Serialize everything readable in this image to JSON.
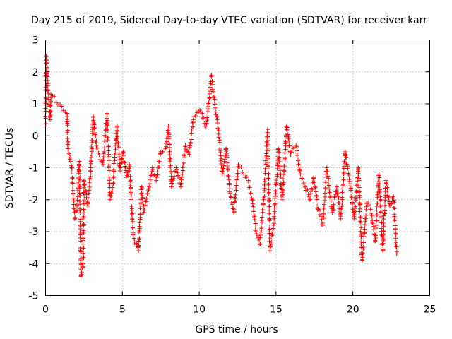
{
  "chart_data": {
    "type": "scatter",
    "title": "Day 215 of 2019, Sidereal Day-to-day VTEC variation (SDTVAR) for receiver karr",
    "xlabel": "GPS time / hours",
    "ylabel": "SDTVAR / TECUs",
    "xlim": [
      0,
      25
    ],
    "ylim": [
      -5,
      3
    ],
    "xticks": [
      "0",
      "5",
      "10",
      "15",
      "20",
      "25"
    ],
    "yticks": [
      "-5",
      "-4",
      "-3",
      "-2",
      "-1",
      "0",
      "1",
      "2",
      "3"
    ],
    "grid": true,
    "marker": "plus",
    "color": "#ff0000",
    "series": [
      {
        "name": "SDTVAR",
        "anchors": [
          [
            0.0,
            0.3
          ],
          [
            0.05,
            2.5
          ],
          [
            0.1,
            1.9
          ],
          [
            0.2,
            1.2
          ],
          [
            0.3,
            0.5
          ],
          [
            0.35,
            1.3
          ],
          [
            1.4,
            0.7
          ],
          [
            1.45,
            -0.4
          ],
          [
            1.7,
            -1.0
          ],
          [
            1.9,
            -2.6
          ],
          [
            2.05,
            -2.2
          ],
          [
            2.2,
            -0.8
          ],
          [
            2.3,
            -4.4
          ],
          [
            2.45,
            -4.1
          ],
          [
            2.5,
            -1.4
          ],
          [
            2.75,
            -2.2
          ],
          [
            2.95,
            -1.0
          ],
          [
            3.1,
            0.6
          ],
          [
            3.3,
            -0.3
          ],
          [
            3.5,
            -0.6
          ],
          [
            3.75,
            -0.9
          ],
          [
            4.0,
            0.7
          ],
          [
            4.2,
            -2.0
          ],
          [
            4.4,
            -1.5
          ],
          [
            4.5,
            -0.6
          ],
          [
            4.65,
            0.3
          ],
          [
            4.85,
            -1.1
          ],
          [
            5.05,
            -0.5
          ],
          [
            5.25,
            -1.3
          ],
          [
            5.45,
            -0.9
          ],
          [
            5.7,
            -3.1
          ],
          [
            6.05,
            -3.6
          ],
          [
            6.25,
            -1.6
          ],
          [
            6.4,
            -2.4
          ],
          [
            6.7,
            -1.7
          ],
          [
            6.95,
            -1.0
          ],
          [
            7.2,
            -1.4
          ],
          [
            7.5,
            -0.5
          ],
          [
            7.8,
            -0.4
          ],
          [
            8.0,
            0.3
          ],
          [
            8.2,
            -1.6
          ],
          [
            8.5,
            -1.0
          ],
          [
            8.8,
            -1.6
          ],
          [
            9.1,
            -0.3
          ],
          [
            9.35,
            -0.6
          ],
          [
            9.65,
            0.6
          ],
          [
            10.05,
            0.8
          ],
          [
            10.45,
            0.3
          ],
          [
            10.8,
            1.9
          ],
          [
            10.95,
            1.2
          ],
          [
            11.2,
            0.4
          ],
          [
            11.5,
            -1.2
          ],
          [
            11.75,
            -0.4
          ],
          [
            12.0,
            -1.8
          ],
          [
            12.25,
            -2.4
          ],
          [
            12.55,
            -0.9
          ],
          [
            12.9,
            -1.2
          ],
          [
            13.2,
            -1.4
          ],
          [
            13.45,
            -2.0
          ],
          [
            13.7,
            -3.0
          ],
          [
            13.95,
            -3.4
          ],
          [
            14.2,
            -2.0
          ],
          [
            14.45,
            0.2
          ],
          [
            14.6,
            -3.6
          ],
          [
            14.85,
            -2.8
          ],
          [
            15.15,
            -0.4
          ],
          [
            15.4,
            -2.0
          ],
          [
            15.7,
            0.3
          ],
          [
            15.95,
            -0.6
          ],
          [
            16.3,
            -0.3
          ],
          [
            16.55,
            -1.1
          ],
          [
            16.9,
            -1.6
          ],
          [
            17.2,
            -2.0
          ],
          [
            17.45,
            -1.3
          ],
          [
            17.75,
            -2.3
          ],
          [
            18.05,
            -2.8
          ],
          [
            18.3,
            -1.0
          ],
          [
            18.65,
            -2.4
          ],
          [
            18.95,
            -1.6
          ],
          [
            19.2,
            -2.6
          ],
          [
            19.5,
            -0.5
          ],
          [
            19.8,
            -1.5
          ],
          [
            20.1,
            -2.6
          ],
          [
            20.35,
            -1.0
          ],
          [
            20.6,
            -3.9
          ],
          [
            20.9,
            -2.1
          ],
          [
            21.15,
            -2.3
          ],
          [
            21.45,
            -3.3
          ],
          [
            21.7,
            -1.2
          ],
          [
            21.95,
            -3.6
          ],
          [
            22.15,
            -1.4
          ],
          [
            22.4,
            -2.2
          ],
          [
            22.65,
            -1.9
          ],
          [
            22.85,
            -3.7
          ]
        ]
      }
    ]
  }
}
